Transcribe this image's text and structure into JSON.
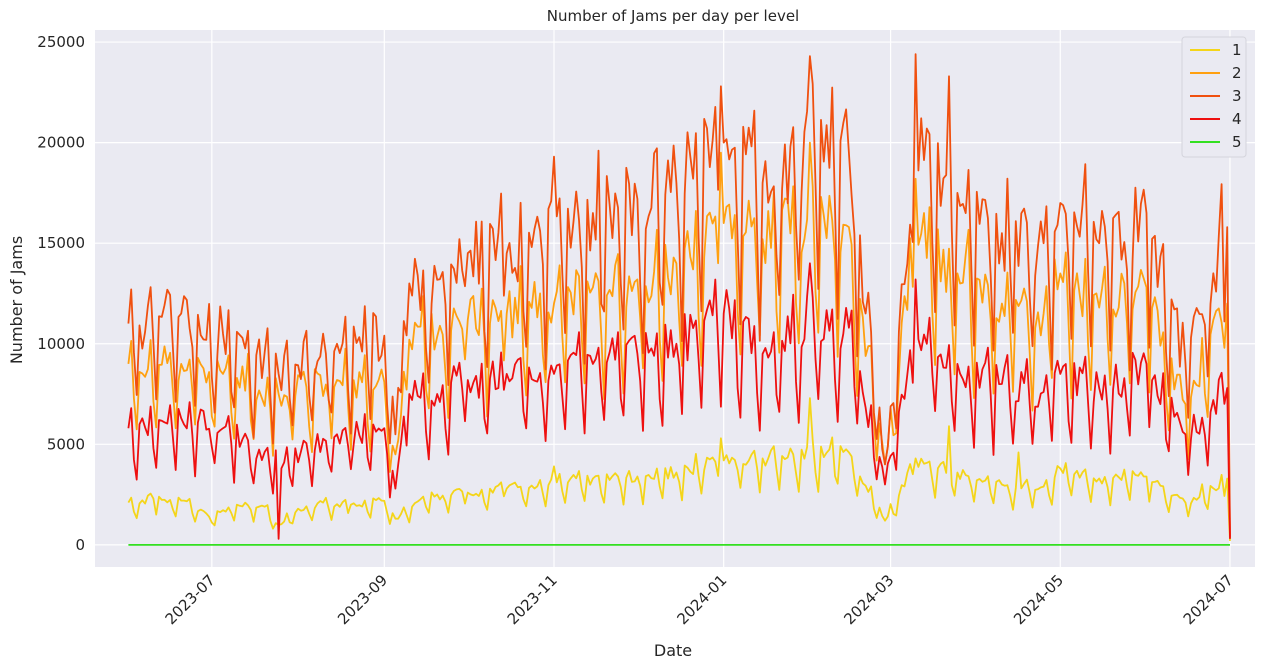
{
  "chart_data": {
    "type": "line",
    "title": "Number of Jams per day per level",
    "xlabel": "Date",
    "ylabel": "Number of Jams",
    "x_range": [
      "2023-05-20",
      "2024-07-10"
    ],
    "ylim": [
      -1100,
      25600
    ],
    "x_ticks": [
      "2023-07",
      "2023-09",
      "2023-11",
      "2024-01",
      "2024-03",
      "2024-05",
      "2024-07"
    ],
    "y_ticks": [
      0,
      5000,
      10000,
      15000,
      20000,
      25000
    ],
    "grid": true,
    "legend_position": "top-right",
    "approximate_daily_series": true,
    "series": [
      {
        "name": "1",
        "color": "#f4d51a",
        "points": [
          [
            "2023-06-01",
            2100
          ],
          [
            "2023-06-10",
            2300
          ],
          [
            "2023-06-20",
            2200
          ],
          [
            "2023-06-30",
            1400
          ],
          [
            "2023-07-10",
            2000
          ],
          [
            "2023-07-20",
            1900
          ],
          [
            "2023-07-25",
            1000
          ],
          [
            "2023-08-01",
            1800
          ],
          [
            "2023-08-10",
            2100
          ],
          [
            "2023-08-20",
            2000
          ],
          [
            "2023-08-31",
            2200
          ],
          [
            "2023-09-05",
            1300
          ],
          [
            "2023-09-15",
            2400
          ],
          [
            "2023-10-01",
            2600
          ],
          [
            "2023-10-15",
            2800
          ],
          [
            "2023-11-01",
            3100
          ],
          [
            "2023-11-15",
            3300
          ],
          [
            "2023-12-01",
            3400
          ],
          [
            "2023-12-15",
            3600
          ],
          [
            "2024-01-01",
            4200
          ],
          [
            "2024-01-15",
            4300
          ],
          [
            "2024-02-01",
            4500
          ],
          [
            "2024-02-15",
            4600
          ],
          [
            "2024-02-28",
            1200
          ],
          [
            "2024-03-10",
            4300
          ],
          [
            "2024-03-25",
            3600
          ],
          [
            "2024-04-10",
            3000
          ],
          [
            "2024-04-25",
            2900
          ],
          [
            "2024-05-01",
            3800
          ],
          [
            "2024-05-15",
            3300
          ],
          [
            "2024-06-01",
            3400
          ],
          [
            "2024-06-15",
            2100
          ],
          [
            "2024-06-30",
            3300
          ],
          [
            "2024-07-01",
            200
          ]
        ],
        "peaks": [
          [
            "2023-11-01",
            3900
          ],
          [
            "2023-12-31",
            5300
          ],
          [
            "2024-02-01",
            7300
          ],
          [
            "2024-03-22",
            5900
          ],
          [
            "2024-04-16",
            4600
          ]
        ],
        "noise": 0.18
      },
      {
        "name": "2",
        "color": "#ffa010",
        "points": [
          [
            "2023-06-01",
            9000
          ],
          [
            "2023-06-20",
            9000
          ],
          [
            "2023-07-05",
            8500
          ],
          [
            "2023-07-25",
            7500
          ],
          [
            "2023-08-15",
            8200
          ],
          [
            "2023-09-01",
            8100
          ],
          [
            "2023-09-05",
            4500
          ],
          [
            "2023-09-10",
            10200
          ],
          [
            "2023-10-01",
            11200
          ],
          [
            "2023-10-15",
            11500
          ],
          [
            "2023-11-01",
            12000
          ],
          [
            "2023-11-15",
            12800
          ],
          [
            "2023-12-01",
            13200
          ],
          [
            "2023-12-15",
            14000
          ],
          [
            "2024-01-01",
            16000
          ],
          [
            "2024-01-15",
            15200
          ],
          [
            "2024-02-01",
            16000
          ],
          [
            "2024-02-15",
            15800
          ],
          [
            "2024-02-28",
            4000
          ],
          [
            "2024-03-10",
            15500
          ],
          [
            "2024-03-25",
            13500
          ],
          [
            "2024-04-10",
            12000
          ],
          [
            "2024-04-25",
            11500
          ],
          [
            "2024-05-01",
            13500
          ],
          [
            "2024-05-15",
            11800
          ],
          [
            "2024-06-01",
            12800
          ],
          [
            "2024-06-15",
            7000
          ],
          [
            "2024-06-30",
            12000
          ],
          [
            "2024-07-01",
            300
          ]
        ],
        "peaks": [
          [
            "2023-12-31",
            19500
          ],
          [
            "2024-02-01",
            20000
          ],
          [
            "2024-03-10",
            18200
          ]
        ],
        "noise": 0.22
      },
      {
        "name": "3",
        "color": "#f0500f",
        "points": [
          [
            "2023-06-01",
            11000
          ],
          [
            "2023-06-20",
            11500
          ],
          [
            "2023-07-05",
            10500
          ],
          [
            "2023-07-25",
            8500
          ],
          [
            "2023-08-15",
            10000
          ],
          [
            "2023-09-01",
            10400
          ],
          [
            "2023-09-05",
            5500
          ],
          [
            "2023-09-10",
            13000
          ],
          [
            "2023-10-01",
            14500
          ],
          [
            "2023-10-15",
            14500
          ],
          [
            "2023-11-01",
            15500
          ],
          [
            "2023-11-15",
            16500
          ],
          [
            "2023-12-01",
            17200
          ],
          [
            "2023-12-15",
            18000
          ],
          [
            "2024-01-01",
            20000
          ],
          [
            "2024-01-15",
            18000
          ],
          [
            "2024-02-01",
            20000
          ],
          [
            "2024-02-15",
            19500
          ],
          [
            "2024-02-28",
            4000
          ],
          [
            "2024-03-10",
            19500
          ],
          [
            "2024-03-25",
            17500
          ],
          [
            "2024-04-10",
            15500
          ],
          [
            "2024-04-25",
            15000
          ],
          [
            "2024-05-01",
            17000
          ],
          [
            "2024-05-15",
            15000
          ],
          [
            "2024-06-01",
            16500
          ],
          [
            "2024-06-15",
            9000
          ],
          [
            "2024-06-30",
            15800
          ],
          [
            "2024-07-01",
            400
          ]
        ],
        "peaks": [
          [
            "2023-11-01",
            19300
          ],
          [
            "2023-12-31",
            22800
          ],
          [
            "2024-02-01",
            24300
          ],
          [
            "2024-03-10",
            24400
          ],
          [
            "2024-03-22",
            23300
          ]
        ],
        "noise": 0.25
      },
      {
        "name": "4",
        "color": "#ee1010",
        "points": [
          [
            "2023-06-01",
            5800
          ],
          [
            "2023-06-20",
            6300
          ],
          [
            "2023-07-05",
            5800
          ],
          [
            "2023-07-25",
            4200
          ],
          [
            "2023-08-15",
            5500
          ],
          [
            "2023-09-01",
            5800
          ],
          [
            "2023-09-05",
            2800
          ],
          [
            "2023-09-10",
            7500
          ],
          [
            "2023-10-01",
            8200
          ],
          [
            "2023-10-15",
            8500
          ],
          [
            "2023-11-01",
            8500
          ],
          [
            "2023-11-15",
            9000
          ],
          [
            "2023-12-01",
            9500
          ],
          [
            "2023-12-15",
            10000
          ],
          [
            "2024-01-01",
            11500
          ],
          [
            "2024-01-15",
            9500
          ],
          [
            "2024-02-01",
            11500
          ],
          [
            "2024-02-15",
            10800
          ],
          [
            "2024-02-28",
            3000
          ],
          [
            "2024-03-10",
            11000
          ],
          [
            "2024-03-25",
            9000
          ],
          [
            "2024-04-10",
            8000
          ],
          [
            "2024-04-25",
            7600
          ],
          [
            "2024-05-01",
            8500
          ],
          [
            "2024-05-15",
            7800
          ],
          [
            "2024-06-01",
            9000
          ],
          [
            "2024-06-15",
            5500
          ],
          [
            "2024-06-30",
            7800
          ],
          [
            "2024-07-01",
            300
          ]
        ],
        "peaks": [
          [
            "2023-07-25",
            300
          ],
          [
            "2024-02-01",
            14000
          ],
          [
            "2024-03-10",
            13200
          ]
        ],
        "noise": 0.24
      },
      {
        "name": "5",
        "color": "#33e020",
        "points": [
          [
            "2023-06-01",
            0
          ],
          [
            "2024-07-01",
            0
          ]
        ],
        "peaks": [],
        "noise": 0
      }
    ]
  }
}
